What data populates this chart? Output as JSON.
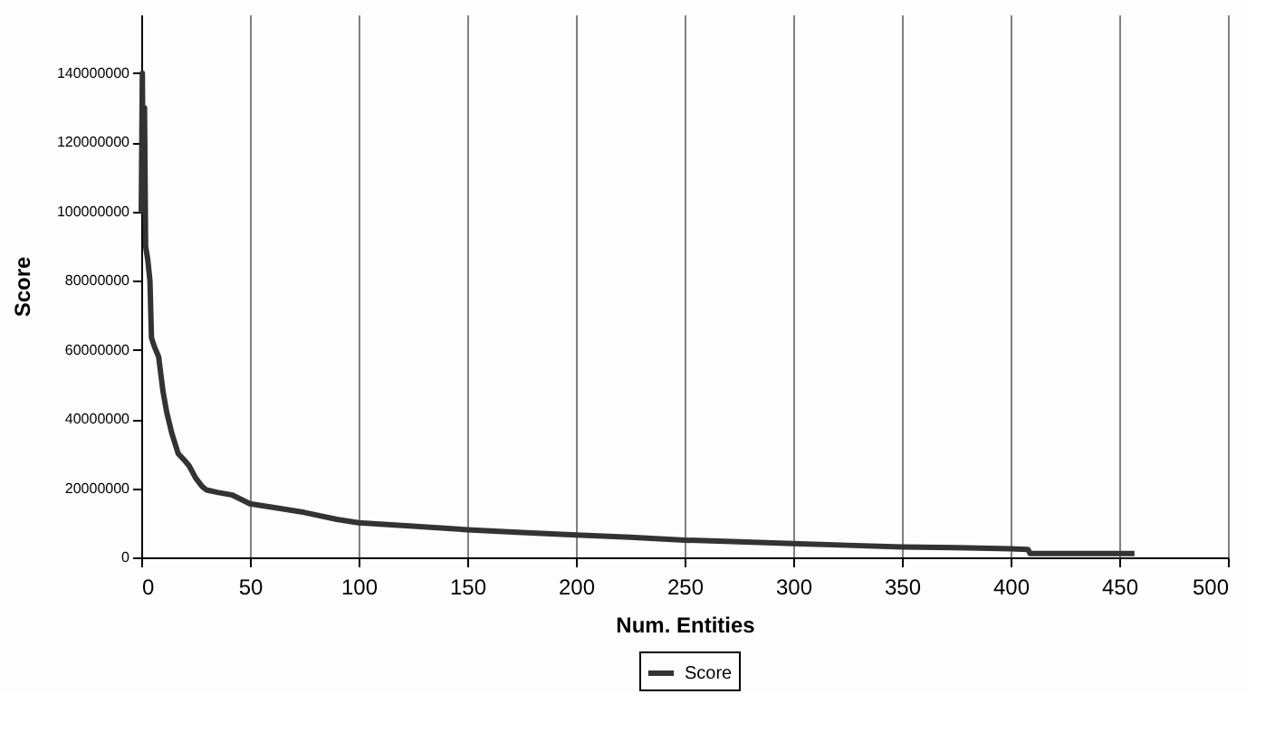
{
  "chart_data": {
    "type": "line",
    "xlabel": "Num. Entities",
    "ylabel": "Score",
    "legend": "bottom",
    "grid": "x",
    "marker": "none",
    "line_style": "solid",
    "xlim": [
      0,
      500
    ],
    "xticks": [
      0,
      50,
      100,
      150,
      200,
      250,
      300,
      350,
      400,
      450,
      500
    ],
    "ylim": [
      0,
      157000000
    ],
    "yticks": [
      0,
      20000000,
      40000000,
      60000000,
      80000000,
      100000000,
      120000000,
      140000000
    ],
    "series": [
      {
        "name": "Score",
        "color": "#333333",
        "x": [
          0,
          0.5,
          1,
          1.5,
          2,
          3,
          4,
          4.7,
          6,
          8,
          10,
          11.7,
          14,
          17,
          20,
          22,
          25,
          28,
          30,
          35,
          42,
          50,
          60,
          75,
          90,
          100,
          125,
          150,
          175,
          200,
          225,
          250,
          275,
          300,
          325,
          350,
          375,
          400,
          408,
          409,
          430,
          457
        ],
        "values": [
          100000000,
          140000000,
          100000000,
          130000000,
          90000000,
          86000000,
          80000000,
          63500000,
          61000000,
          58000000,
          48000000,
          42000000,
          36000000,
          30000000,
          28000000,
          26500000,
          23000000,
          20500000,
          19500000,
          18800000,
          18000000,
          15500000,
          14500000,
          13000000,
          11000000,
          10000000,
          9000000,
          8000000,
          7200000,
          6500000,
          5800000,
          5000000,
          4500000,
          4000000,
          3500000,
          3000000,
          2800000,
          2500000,
          2300000,
          1100000,
          1100000,
          1100000
        ]
      }
    ]
  }
}
